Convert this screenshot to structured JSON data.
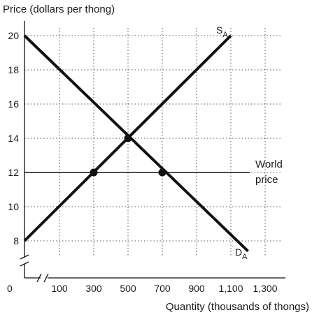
{
  "chart_data": {
    "type": "line",
    "ylabel": "Price (dollars per thong)",
    "xlabel": "Quantity (thousands of thongs)",
    "ylim": [
      8,
      20
    ],
    "xlim": [
      0,
      1300
    ],
    "y_ticks": [
      20,
      18,
      16,
      14,
      12,
      10,
      8
    ],
    "y_tick_labels": [
      "20",
      "18",
      "16",
      "14",
      "12",
      "10",
      "8"
    ],
    "x_ticks": [
      100,
      300,
      500,
      700,
      900,
      1100,
      1300
    ],
    "x_tick_labels": [
      "100",
      "300",
      "500",
      "700",
      "900",
      "1,100",
      "1,300"
    ],
    "origin_label": "0",
    "grid": true,
    "axis_break": true,
    "series": [
      {
        "name": "S",
        "subscript": "A",
        "x": [
          0,
          1100
        ],
        "y": [
          8,
          20
        ]
      },
      {
        "name": "D",
        "subscript": "A",
        "x": [
          0,
          1200
        ],
        "y": [
          20,
          7.4
        ]
      }
    ],
    "world_price": {
      "value": 12,
      "x_range": [
        0,
        1300
      ],
      "label_line1": "World",
      "label_line2": "price"
    },
    "points": [
      {
        "x": 300,
        "y": 12
      },
      {
        "x": 500,
        "y": 14
      },
      {
        "x": 700,
        "y": 12
      }
    ],
    "colors": {
      "line": "#111111",
      "grid": "#555555",
      "background": "#ffffff"
    }
  }
}
